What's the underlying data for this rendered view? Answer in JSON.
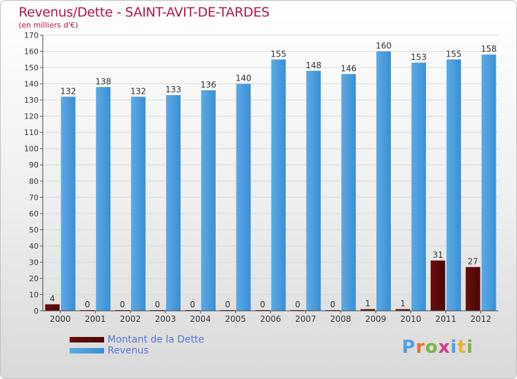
{
  "chart_data": {
    "type": "bar",
    "title": "Revenus/Dette - SAINT-AVIT-DE-TARDES",
    "subtitle": "(en milliers d'€)",
    "categories": [
      "2000",
      "2001",
      "2002",
      "2003",
      "2004",
      "2005",
      "2006",
      "2007",
      "2008",
      "2009",
      "2010",
      "2011",
      "2012"
    ],
    "series": [
      {
        "name": "Montant de la Dette",
        "color": "#6b0d0d",
        "values": [
          4,
          0,
          0,
          0,
          0,
          0,
          0,
          0,
          0,
          1,
          1,
          31,
          27
        ]
      },
      {
        "name": "Revenus",
        "color": "#5aaae6",
        "values": [
          132,
          138,
          132,
          133,
          136,
          140,
          155,
          148,
          146,
          160,
          153,
          155,
          158
        ]
      }
    ],
    "ylim": [
      0,
      170
    ],
    "yticks": [
      0,
      10,
      20,
      30,
      40,
      50,
      60,
      70,
      80,
      90,
      100,
      110,
      120,
      130,
      140,
      150,
      160,
      170
    ],
    "grid": true,
    "legend": "bottom-left"
  },
  "logo": {
    "letters": [
      "P",
      "r",
      "o",
      "x",
      "i",
      "t",
      "i"
    ],
    "colors": [
      "#4f9fe0",
      "#e8742a",
      "#74b843",
      "#d63c8a",
      "#4f9fe0",
      "#e8b42a",
      "#74b843"
    ]
  }
}
